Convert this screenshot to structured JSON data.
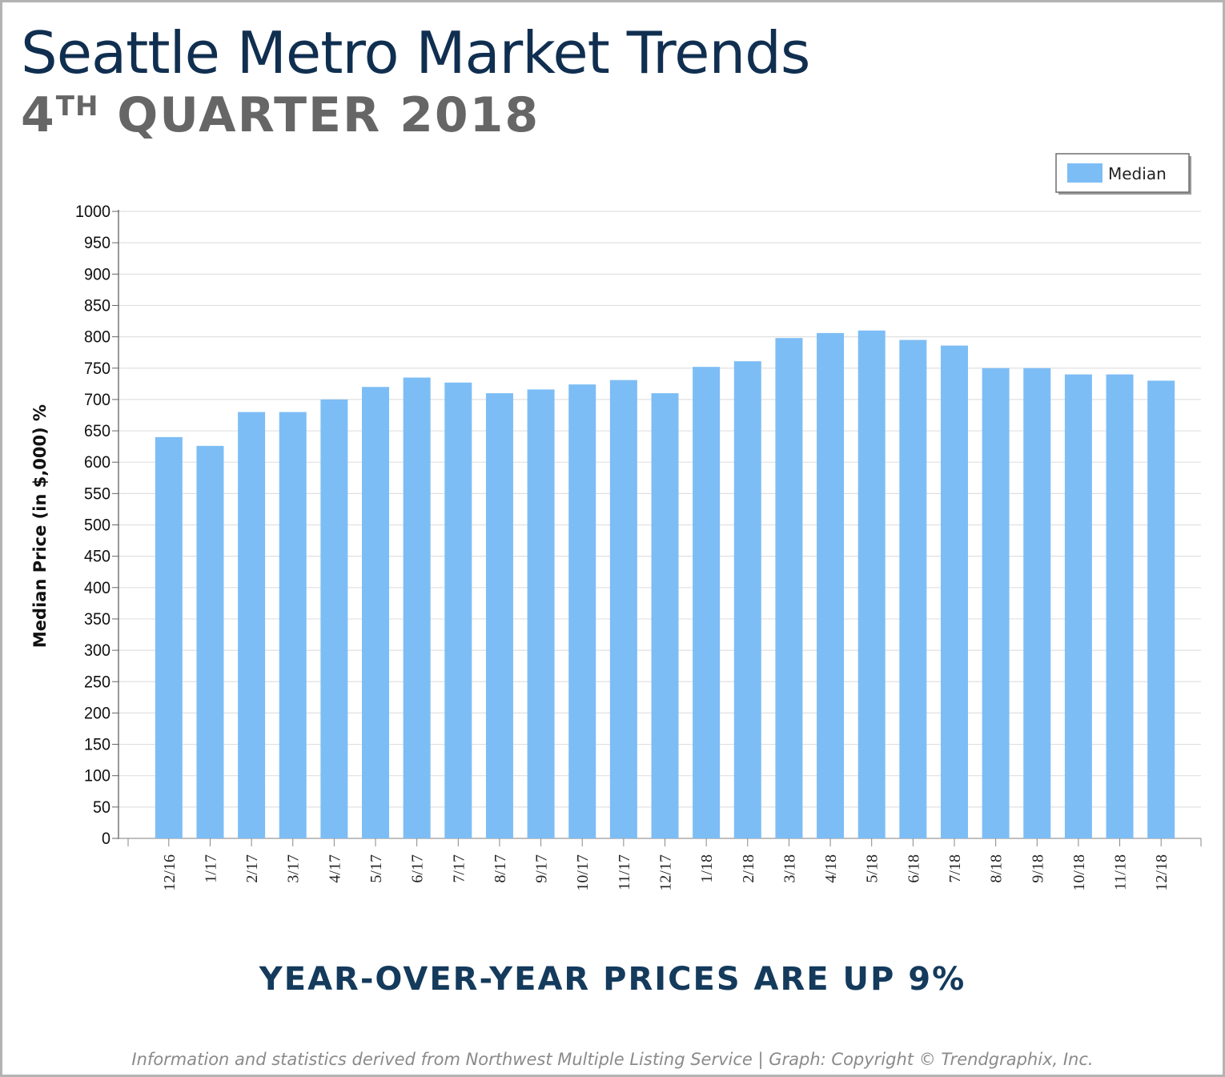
{
  "header": {
    "title": "Seattle Metro Market Trends",
    "subtitle_number": "4",
    "subtitle_suffix": "TH",
    "subtitle_rest": "QUARTER 2018"
  },
  "callout": "YEAR-OVER-YEAR PRICES ARE UP 9%",
  "footer": "Information and statistics derived from Northwest Multiple Listing Service  |  Graph: Copyright © Trendgraphix, Inc.",
  "colors": {
    "title": "#102f50",
    "subtitle": "#666666",
    "bar": "#7dbdf5",
    "callout": "#143a5c",
    "footer": "#8a8a8a",
    "grid": "#e0e0e0"
  },
  "chart_data": {
    "type": "bar",
    "ylabel": "Median Price (in $,000) %",
    "xlabel": "",
    "ylim": [
      0,
      1000
    ],
    "yticks": [
      0,
      50,
      100,
      150,
      200,
      250,
      300,
      350,
      400,
      450,
      500,
      550,
      600,
      650,
      700,
      750,
      800,
      850,
      900,
      950,
      1000
    ],
    "grid": true,
    "legend_position": "top-right",
    "categories": [
      "12/16",
      "1/17",
      "2/17",
      "3/17",
      "4/17",
      "5/17",
      "6/17",
      "7/17",
      "8/17",
      "9/17",
      "10/17",
      "11/17",
      "12/17",
      "1/18",
      "2/18",
      "3/18",
      "4/18",
      "5/18",
      "6/18",
      "7/18",
      "8/18",
      "9/18",
      "10/18",
      "11/18",
      "12/18"
    ],
    "series": [
      {
        "name": "Median",
        "color": "#7dbdf5",
        "values": [
          640,
          626,
          680,
          680,
          700,
          720,
          735,
          727,
          710,
          716,
          724,
          731,
          710,
          752,
          761,
          798,
          806,
          810,
          795,
          786,
          750,
          750,
          740,
          740,
          730
        ]
      }
    ]
  }
}
